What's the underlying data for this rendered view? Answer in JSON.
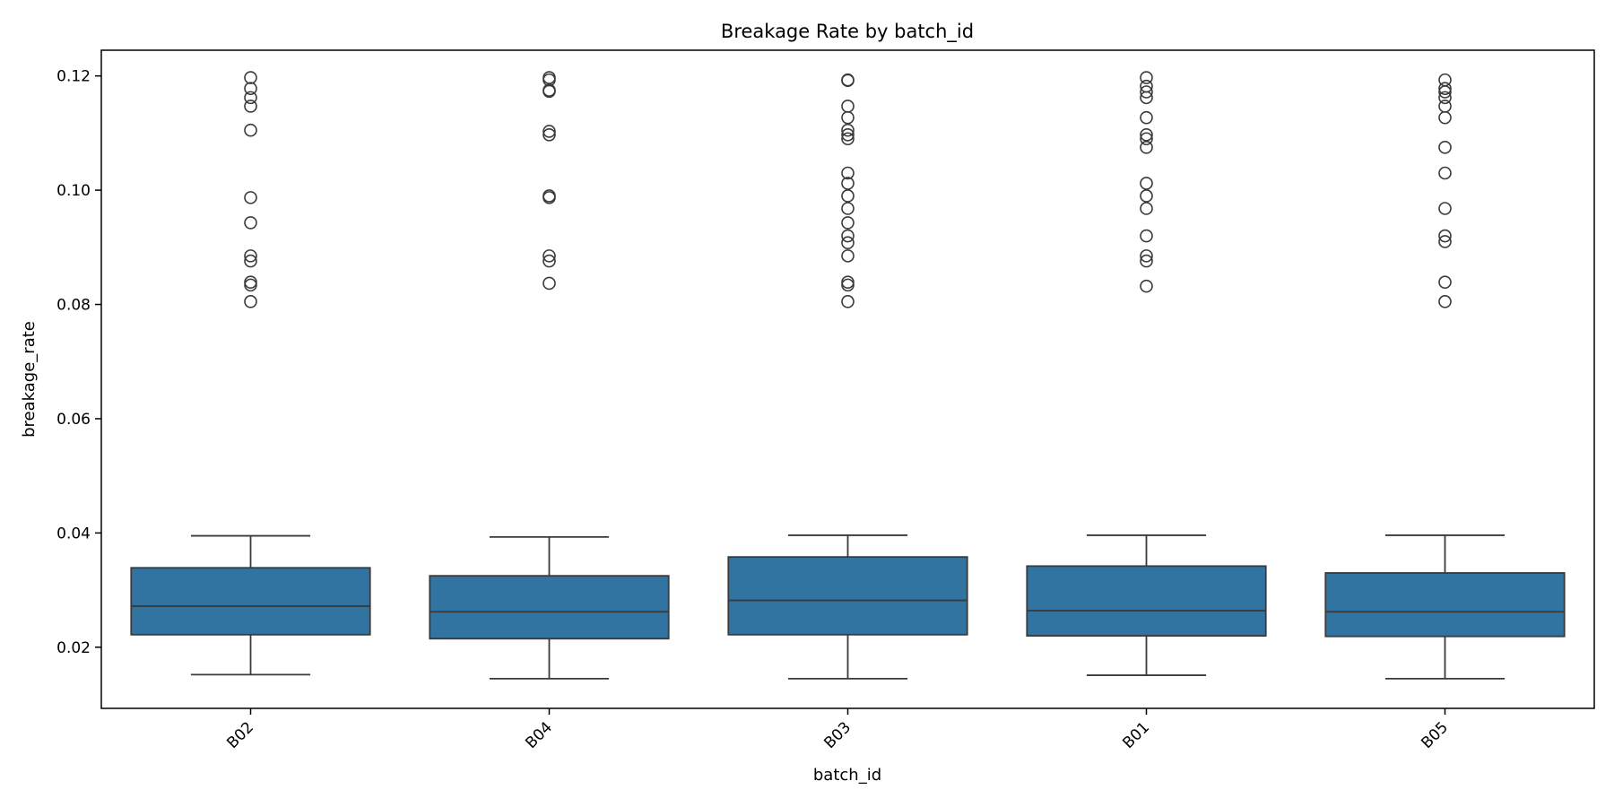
{
  "chart_data": {
    "type": "box",
    "title": "Breakage Rate by batch_id",
    "xlabel": "batch_id",
    "ylabel": "breakage_rate",
    "ylim": [
      0.0093,
      0.1245
    ],
    "yticks": [
      "0.02",
      "0.04",
      "0.06",
      "0.08",
      "0.10",
      "0.12"
    ],
    "ytick_values": [
      0.02,
      0.04,
      0.06,
      0.08,
      0.1,
      0.12
    ],
    "box_color": "#3274a1",
    "line_color": "#3a3a3a",
    "categories": [
      "B02",
      "B04",
      "B03",
      "B01",
      "B05"
    ],
    "boxes": [
      {
        "label": "B02",
        "whislo": 0.0152,
        "q1": 0.0222,
        "median": 0.0272,
        "q3": 0.0339,
        "whishi": 0.0395,
        "fliers": [
          0.1197,
          0.1178,
          0.1162,
          0.1147,
          0.1105,
          0.0987,
          0.0943,
          0.0885,
          0.0876,
          0.0839,
          0.0834,
          0.0805
        ]
      },
      {
        "label": "B04",
        "whislo": 0.0145,
        "q1": 0.0215,
        "median": 0.0262,
        "q3": 0.0325,
        "whishi": 0.0393,
        "fliers": [
          0.1197,
          0.1193,
          0.1175,
          0.1173,
          0.1103,
          0.1097,
          0.099,
          0.0987,
          0.0885,
          0.0876,
          0.0837
        ]
      },
      {
        "label": "B03",
        "whislo": 0.0145,
        "q1": 0.0222,
        "median": 0.0282,
        "q3": 0.0358,
        "whishi": 0.0396,
        "fliers": [
          0.1193,
          0.1192,
          0.1147,
          0.1127,
          0.1105,
          0.1097,
          0.109,
          0.103,
          0.1012,
          0.099,
          0.0968,
          0.0943,
          0.092,
          0.0908,
          0.0885,
          0.0839,
          0.0834,
          0.0805
        ]
      },
      {
        "label": "B01",
        "whislo": 0.0151,
        "q1": 0.022,
        "median": 0.0264,
        "q3": 0.0342,
        "whishi": 0.0396,
        "fliers": [
          0.1197,
          0.1182,
          0.1172,
          0.1162,
          0.1127,
          0.1097,
          0.109,
          0.1075,
          0.1012,
          0.099,
          0.0968,
          0.092,
          0.0885,
          0.0876,
          0.0832
        ]
      },
      {
        "label": "B05",
        "whislo": 0.0145,
        "q1": 0.0219,
        "median": 0.0262,
        "q3": 0.033,
        "whishi": 0.0396,
        "fliers": [
          0.1193,
          0.1178,
          0.1172,
          0.1162,
          0.1147,
          0.1127,
          0.1075,
          0.103,
          0.0968,
          0.092,
          0.091,
          0.0839,
          0.0805
        ]
      }
    ]
  }
}
